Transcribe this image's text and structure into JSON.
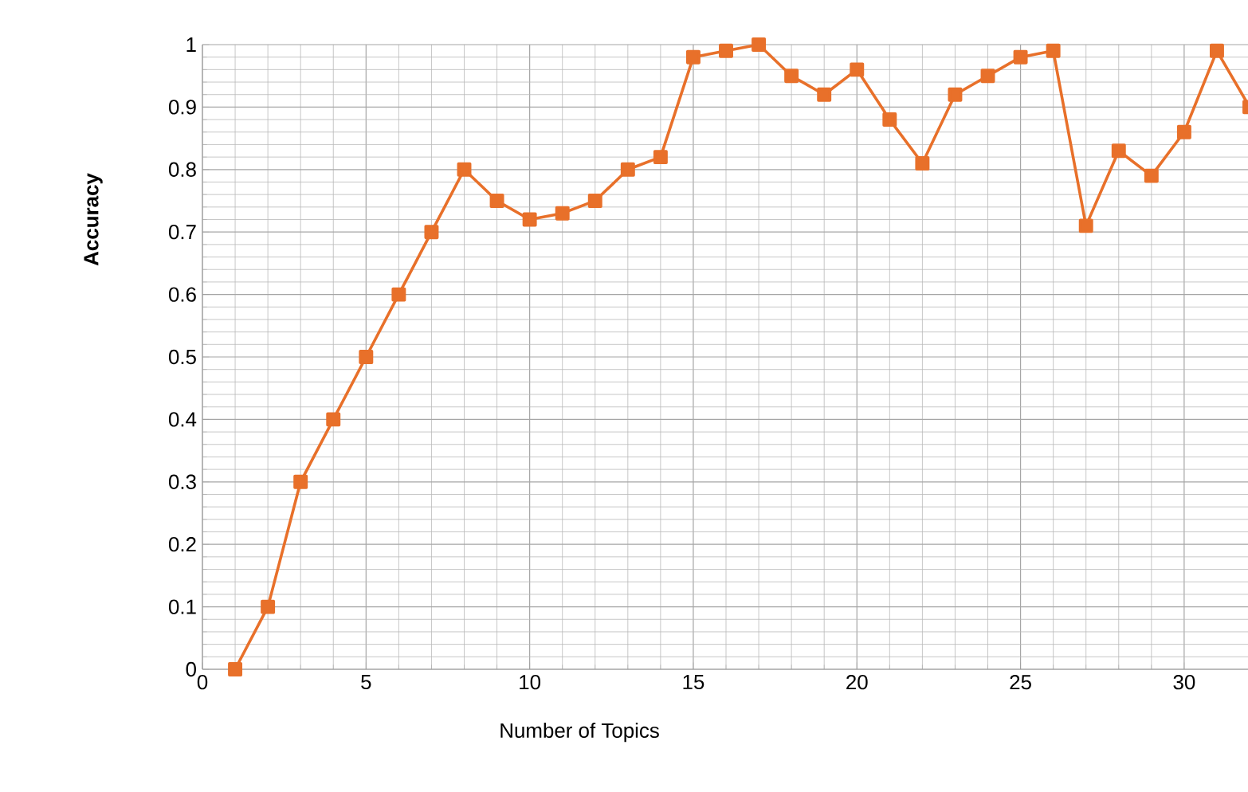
{
  "chart_data": {
    "type": "line",
    "xlabel": "Number of Topics",
    "ylabel": "Accuracy",
    "x": [
      1,
      2,
      3,
      4,
      5,
      6,
      7,
      8,
      9,
      10,
      11,
      12,
      13,
      14,
      15,
      16,
      17,
      18,
      19,
      20,
      21,
      22,
      23,
      24,
      25,
      26,
      27,
      28,
      29,
      30,
      31,
      32
    ],
    "series": [
      {
        "color": "#e8702a",
        "values": [
          0,
          0.1,
          0.3,
          0.4,
          0.5,
          0.6,
          0.7,
          0.8,
          0.75,
          0.72,
          0.73,
          0.75,
          0.8,
          0.82,
          0.98,
          0.99,
          1.0,
          0.95,
          0.92,
          0.96,
          0.88,
          0.81,
          0.92,
          0.95,
          0.98,
          0.99,
          0.71,
          0.83,
          0.79,
          0.86,
          0.99,
          0.9
        ]
      }
    ],
    "xlim": [
      0,
      32
    ],
    "ylim": [
      0,
      1
    ],
    "xticks": [
      0,
      5,
      10,
      15,
      20,
      25,
      30
    ],
    "yticks": [
      0,
      0.1,
      0.2,
      0.3,
      0.4,
      0.5,
      0.6,
      0.7,
      0.8,
      0.9,
      1
    ],
    "grid": true,
    "marker": "square",
    "line_style": "solid"
  }
}
